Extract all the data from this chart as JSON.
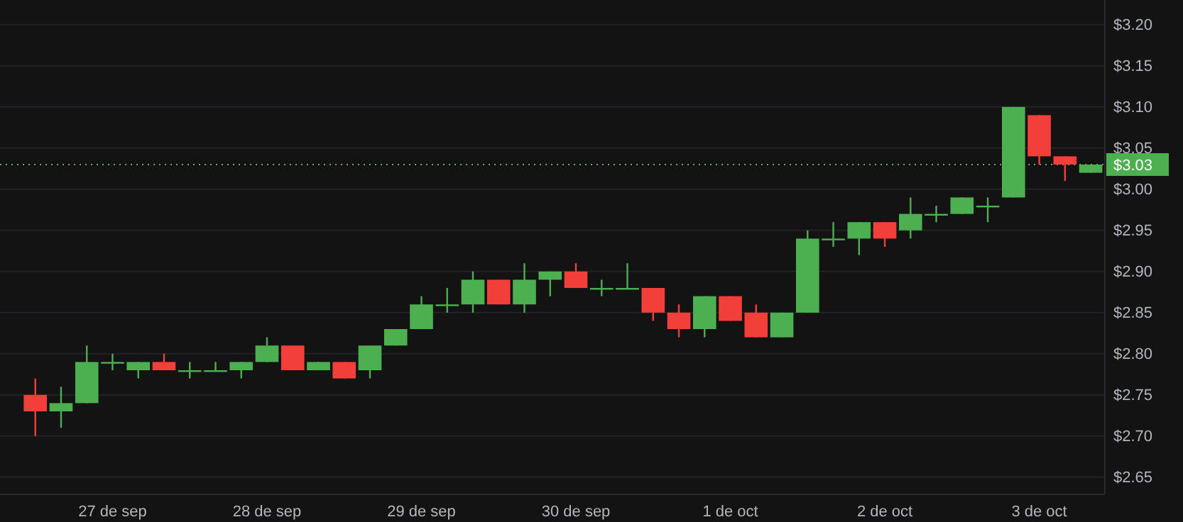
{
  "chart_data": {
    "type": "candlestick",
    "categories": [
      null,
      null,
      null,
      "27 de sep",
      null,
      null,
      null,
      null,
      null,
      "28 de sep",
      null,
      null,
      null,
      null,
      null,
      "29 de sep",
      null,
      null,
      null,
      null,
      null,
      "30 de sep",
      null,
      null,
      null,
      null,
      null,
      "1 de oct",
      null,
      null,
      null,
      null,
      null,
      "2 de oct",
      null,
      null,
      null,
      null,
      null,
      "3 de oct",
      null,
      null
    ],
    "ohlc": [
      [
        2.75,
        2.77,
        2.7,
        2.73
      ],
      [
        2.73,
        2.76,
        2.71,
        2.74
      ],
      [
        2.74,
        2.81,
        2.74,
        2.79
      ],
      [
        2.79,
        2.8,
        2.78,
        2.79
      ],
      [
        2.78,
        2.79,
        2.77,
        2.79
      ],
      [
        2.79,
        2.8,
        2.78,
        2.78
      ],
      [
        2.78,
        2.79,
        2.77,
        2.78
      ],
      [
        2.78,
        2.79,
        2.78,
        2.78
      ],
      [
        2.78,
        2.79,
        2.77,
        2.79
      ],
      [
        2.79,
        2.82,
        2.79,
        2.81
      ],
      [
        2.81,
        2.81,
        2.78,
        2.78
      ],
      [
        2.78,
        2.79,
        2.78,
        2.79
      ],
      [
        2.79,
        2.79,
        2.77,
        2.77
      ],
      [
        2.78,
        2.81,
        2.77,
        2.81
      ],
      [
        2.81,
        2.83,
        2.81,
        2.83
      ],
      [
        2.83,
        2.87,
        2.83,
        2.86
      ],
      [
        2.86,
        2.88,
        2.85,
        2.86
      ],
      [
        2.86,
        2.9,
        2.85,
        2.89
      ],
      [
        2.89,
        2.89,
        2.86,
        2.86
      ],
      [
        2.86,
        2.91,
        2.85,
        2.89
      ],
      [
        2.89,
        2.9,
        2.87,
        2.9
      ],
      [
        2.9,
        2.91,
        2.88,
        2.88
      ],
      [
        2.88,
        2.89,
        2.87,
        2.88
      ],
      [
        2.88,
        2.91,
        2.88,
        2.88
      ],
      [
        2.88,
        2.88,
        2.84,
        2.85
      ],
      [
        2.85,
        2.86,
        2.82,
        2.83
      ],
      [
        2.83,
        2.87,
        2.82,
        2.87
      ],
      [
        2.87,
        2.87,
        2.84,
        2.84
      ],
      [
        2.85,
        2.86,
        2.82,
        2.82
      ],
      [
        2.82,
        2.85,
        2.82,
        2.85
      ],
      [
        2.85,
        2.95,
        2.85,
        2.94
      ],
      [
        2.94,
        2.96,
        2.93,
        2.94
      ],
      [
        2.94,
        2.96,
        2.92,
        2.96
      ],
      [
        2.96,
        2.96,
        2.93,
        2.94
      ],
      [
        2.95,
        2.99,
        2.94,
        2.97
      ],
      [
        2.97,
        2.98,
        2.96,
        2.97
      ],
      [
        2.97,
        2.99,
        2.97,
        2.99
      ],
      [
        2.98,
        2.99,
        2.96,
        2.98
      ],
      [
        2.99,
        3.1,
        2.99,
        3.1
      ],
      [
        3.09,
        3.09,
        3.03,
        3.04
      ],
      [
        3.04,
        3.04,
        3.01,
        3.03
      ],
      [
        3.02,
        3.03,
        3.02,
        3.03
      ]
    ],
    "colors": [
      "#f23f3a",
      "#4caf50",
      "#4caf50",
      "#4caf50",
      "#4caf50",
      "#f23f3a",
      "#4caf50",
      "#4caf50",
      "#4caf50",
      "#4caf50",
      "#f23f3a",
      "#4caf50",
      "#f23f3a",
      "#4caf50",
      "#4caf50",
      "#4caf50",
      "#4caf50",
      "#4caf50",
      "#f23f3a",
      "#4caf50",
      "#4caf50",
      "#f23f3a",
      "#4caf50",
      "#4caf50",
      "#f23f3a",
      "#f23f3a",
      "#4caf50",
      "#f23f3a",
      "#f23f3a",
      "#4caf50",
      "#4caf50",
      "#4caf50",
      "#4caf50",
      "#f23f3a",
      "#4caf50",
      "#4caf50",
      "#4caf50",
      "#4caf50",
      "#4caf50",
      "#f23f3a",
      "#f23f3a",
      "#4caf50"
    ],
    "ylim": [
      2.63,
      3.23
    ],
    "yticks": [
      {
        "value": 2.65,
        "label": "$2.65"
      },
      {
        "value": 2.7,
        "label": "$2.70"
      },
      {
        "value": 2.75,
        "label": "$2.75"
      },
      {
        "value": 2.8,
        "label": "$2.80"
      },
      {
        "value": 2.85,
        "label": "$2.85"
      },
      {
        "value": 2.9,
        "label": "$2.90"
      },
      {
        "value": 2.95,
        "label": "$2.95"
      },
      {
        "value": 3.0,
        "label": "$3.00"
      },
      {
        "value": 3.05,
        "label": "$3.05"
      },
      {
        "value": 3.1,
        "label": "$3.10"
      },
      {
        "value": 3.15,
        "label": "$3.15"
      },
      {
        "value": 3.2,
        "label": "$3.20"
      }
    ],
    "grid": "y",
    "ref_lines": [
      {
        "axis": "y",
        "value": 3.03,
        "label": "$3.03",
        "color": "#4caf50",
        "line_style": "dotted"
      }
    ]
  }
}
